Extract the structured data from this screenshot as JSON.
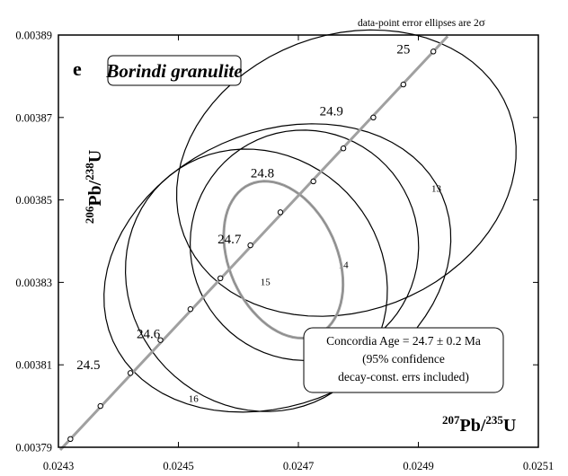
{
  "chart_data": {
    "type": "scatter",
    "note": "data-point error ellipses are 2",
    "note_symbol": "σ",
    "panel_letter": "e",
    "title": "Borindi granulite",
    "xlabel": {
      "sup1": "207",
      "main1": "Pb/",
      "sup2": "235",
      "main2": "U"
    },
    "ylabel": {
      "sup1": "206",
      "main1": "Pb/",
      "sup2": "238",
      "main2": "U"
    },
    "xlim": [
      0.0243,
      0.0251
    ],
    "ylim": [
      0.00379,
      0.00389
    ],
    "x_ticks": [
      "0.0243",
      "0.0245",
      "0.0247",
      "0.0249",
      "0.0251"
    ],
    "y_ticks": [
      "0.00379",
      "0.00381",
      "0.00383",
      "0.00385",
      "0.00387",
      "0.00389"
    ],
    "concordia": {
      "color": "#a0a0a0",
      "points": [
        {
          "x": 0.02432,
          "y": 0.003792
        },
        {
          "x": 0.02437,
          "y": 0.0038
        },
        {
          "x": 0.02442,
          "y": 0.003808
        },
        {
          "x": 0.02447,
          "y": 0.003816
        },
        {
          "x": 0.02452,
          "y": 0.0038235
        },
        {
          "x": 0.02457,
          "y": 0.003831
        },
        {
          "x": 0.02462,
          "y": 0.003839
        },
        {
          "x": 0.02467,
          "y": 0.003847
        },
        {
          "x": 0.024725,
          "y": 0.0038545
        },
        {
          "x": 0.024775,
          "y": 0.0038625
        },
        {
          "x": 0.024825,
          "y": 0.00387
        },
        {
          "x": 0.024875,
          "y": 0.003878
        },
        {
          "x": 0.024925,
          "y": 0.003886
        }
      ],
      "age_labels": [
        {
          "text": "24.5",
          "x": 0.02435,
          "y": 0.003809
        },
        {
          "text": "24.6",
          "x": 0.02445,
          "y": 0.0038165
        },
        {
          "text": "24.7",
          "x": 0.024585,
          "y": 0.0038395
        },
        {
          "text": "24.8",
          "x": 0.02464,
          "y": 0.0038555
        },
        {
          "text": "24.9",
          "x": 0.024755,
          "y": 0.0038705
        },
        {
          "text": "25",
          "x": 0.024875,
          "y": 0.0038855
        }
      ]
    },
    "ellipses": [
      {
        "label": "13",
        "cx": 0.02478,
        "cy": 0.0038565,
        "a": 0.00029,
        "b": 3.35e-05,
        "angle_deg": 21,
        "label_x": 0.02493,
        "label_y": 0.003852
      },
      {
        "label": "14",
        "cx": 0.02471,
        "cy": 0.003839,
        "a": 0.00019,
        "b": 2.8e-05,
        "angle_deg": 24,
        "label_x": 0.024775,
        "label_y": 0.0038335
      },
      {
        "label": "16",
        "cx": 0.02463,
        "cy": 0.0038305,
        "a": 0.00021,
        "b": 3.3e-05,
        "angle_deg": 44,
        "label_x": 0.024525,
        "label_y": 0.003801
      },
      {
        "label": "",
        "cx": 0.024665,
        "cy": 0.0038335,
        "a": 0.0003,
        "b": 3.3e-05,
        "angle_deg": 24
      }
    ],
    "concordia_ellipse": {
      "cx": 0.024675,
      "cy": 0.0038355,
      "a": 9e-05,
      "b": 2e-05,
      "angle_deg": 24,
      "color": "#a0a0a0",
      "label": "15",
      "label_x": 0.024645,
      "label_y": 0.0038293
    },
    "age_box": {
      "line1": "Concordia Age = 24.7 ± 0.2 Ma",
      "line2": "(95% confidence",
      "line3": "decay-const. errs included)"
    }
  }
}
